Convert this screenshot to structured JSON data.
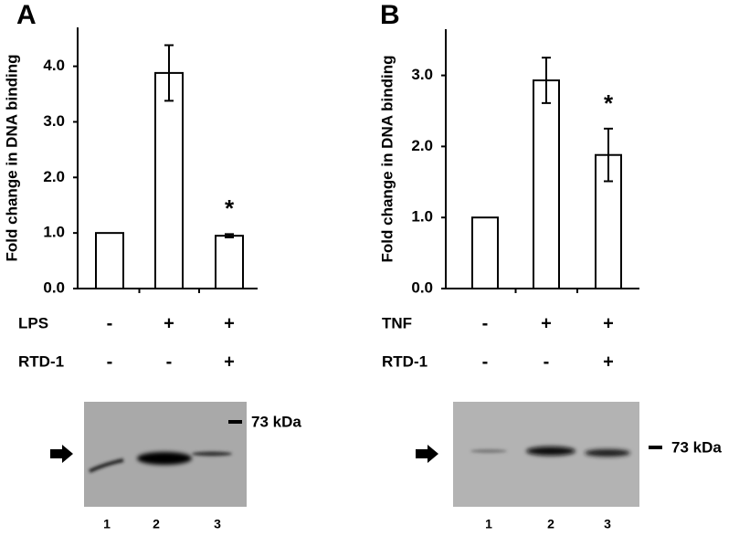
{
  "chart_data": [
    {
      "type": "bar",
      "panel": "A",
      "y_label": "Fold change in DNA binding",
      "categories": [
        null,
        null,
        null
      ],
      "series": [
        {
          "values": [
            1.0,
            3.88,
            0.95
          ],
          "errors": [
            0,
            0.5,
            0.03
          ],
          "color": "#ffffff"
        }
      ],
      "significance": [
        null,
        null,
        "*"
      ],
      "ylim": [
        0,
        4.7
      ],
      "yticks": [
        {
          "value": 0,
          "label": "0.0"
        },
        {
          "value": 1,
          "label": "1.0"
        },
        {
          "value": 2,
          "label": "2.0"
        },
        {
          "value": 3,
          "label": "3.0"
        },
        {
          "value": 4,
          "label": "4.0"
        }
      ],
      "treatments": [
        {
          "name": "LPS",
          "values": [
            "-",
            "+",
            "+"
          ]
        },
        {
          "name": "RTD-1",
          "values": [
            "-",
            "-",
            "+"
          ]
        }
      ],
      "blot": {
        "marker": "73 kDa",
        "lanes": [
          "1",
          "2",
          "3"
        ]
      }
    },
    {
      "type": "bar",
      "panel": "B",
      "y_label": "Fold change in DNA binding",
      "categories": [
        null,
        null,
        null
      ],
      "series": [
        {
          "values": [
            1.0,
            2.93,
            1.88
          ],
          "errors": [
            0,
            0.32,
            0.37
          ],
          "color": "#ffffff"
        }
      ],
      "significance": [
        null,
        null,
        "*"
      ],
      "ylim": [
        0,
        3.65
      ],
      "yticks": [
        {
          "value": 0,
          "label": "0.0"
        },
        {
          "value": 1,
          "label": "1.0"
        },
        {
          "value": 2,
          "label": "2.0"
        },
        {
          "value": 3,
          "label": "3.0"
        }
      ],
      "treatments": [
        {
          "name": "TNF",
          "values": [
            "-",
            "+",
            "+"
          ]
        },
        {
          "name": "RTD-1",
          "values": [
            "-",
            "-",
            "+"
          ]
        }
      ],
      "blot": {
        "marker": "73 kDa",
        "lanes": [
          "1",
          "2",
          "3"
        ]
      }
    }
  ]
}
